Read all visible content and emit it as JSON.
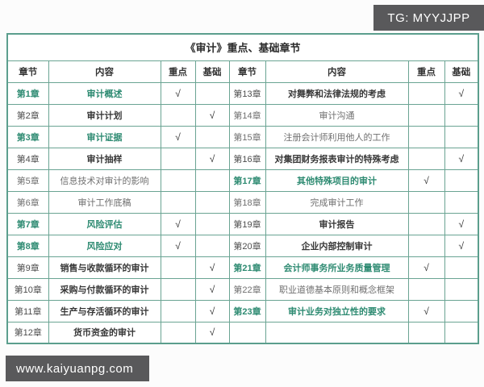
{
  "badges": {
    "tg": "TG: MYYJJPP",
    "site": "www.kaiyuanpg.com"
  },
  "colors": {
    "highlight_green": "#2e8b72",
    "table_border": "#5b9e8d",
    "badge_background": "#59595b"
  },
  "table": {
    "title": "《审计》重点、基础章节",
    "columns": [
      "章节",
      "内容",
      "重点",
      "基础",
      "章节",
      "内容",
      "重点",
      "基础"
    ],
    "check_mark": "√",
    "rows": [
      {
        "left": {
          "chapter": "第1章",
          "content": "审计概述",
          "key": "√",
          "basic": "",
          "style": "key"
        },
        "right": {
          "chapter": "第13章",
          "content": "对舞弊和法律法规的考虑",
          "key": "",
          "basic": "√",
          "style": "basic"
        }
      },
      {
        "left": {
          "chapter": "第2章",
          "content": "审计计划",
          "key": "",
          "basic": "√",
          "style": "basic"
        },
        "right": {
          "chapter": "第14章",
          "content": "审计沟通",
          "key": "",
          "basic": "",
          "style": "none"
        }
      },
      {
        "left": {
          "chapter": "第3章",
          "content": "审计证据",
          "key": "√",
          "basic": "",
          "style": "key"
        },
        "right": {
          "chapter": "第15章",
          "content": "注册会计师利用他人的工作",
          "key": "",
          "basic": "",
          "style": "none"
        }
      },
      {
        "left": {
          "chapter": "第4章",
          "content": "审计抽样",
          "key": "",
          "basic": "√",
          "style": "basic"
        },
        "right": {
          "chapter": "第16章",
          "content": "对集团财务报表审计的特殊考虑",
          "key": "",
          "basic": "√",
          "style": "basic"
        }
      },
      {
        "left": {
          "chapter": "第5章",
          "content": "信息技术对审计的影响",
          "key": "",
          "basic": "",
          "style": "none"
        },
        "right": {
          "chapter": "第17章",
          "content": "其他特殊项目的审计",
          "key": "√",
          "basic": "",
          "style": "key"
        }
      },
      {
        "left": {
          "chapter": "第6章",
          "content": "审计工作底稿",
          "key": "",
          "basic": "",
          "style": "none"
        },
        "right": {
          "chapter": "第18章",
          "content": "完成审计工作",
          "key": "",
          "basic": "",
          "style": "none"
        }
      },
      {
        "left": {
          "chapter": "第7章",
          "content": "风险评估",
          "key": "√",
          "basic": "",
          "style": "key"
        },
        "right": {
          "chapter": "第19章",
          "content": "审计报告",
          "key": "",
          "basic": "√",
          "style": "basic"
        }
      },
      {
        "left": {
          "chapter": "第8章",
          "content": "风险应对",
          "key": "√",
          "basic": "",
          "style": "key"
        },
        "right": {
          "chapter": "第20章",
          "content": "企业内部控制审计",
          "key": "",
          "basic": "√",
          "style": "basic"
        }
      },
      {
        "left": {
          "chapter": "第9章",
          "content": "销售与收款循环的审计",
          "key": "",
          "basic": "√",
          "style": "basic"
        },
        "right": {
          "chapter": "第21章",
          "content": "会计师事务所业务质量管理",
          "key": "√",
          "basic": "",
          "style": "key"
        }
      },
      {
        "left": {
          "chapter": "第10章",
          "content": "采购与付款循环的审计",
          "key": "",
          "basic": "√",
          "style": "basic"
        },
        "right": {
          "chapter": "第22章",
          "content": "职业道德基本原则和概念框架",
          "key": "",
          "basic": "",
          "style": "none"
        }
      },
      {
        "left": {
          "chapter": "第11章",
          "content": "生产与存活循环的审计",
          "key": "",
          "basic": "√",
          "style": "basic"
        },
        "right": {
          "chapter": "第23章",
          "content": "审计业务对独立性的要求",
          "key": "√",
          "basic": "",
          "style": "key"
        }
      },
      {
        "left": {
          "chapter": "第12章",
          "content": "货币资金的审计",
          "key": "",
          "basic": "√",
          "style": "basic"
        },
        "right": {
          "chapter": "",
          "content": "",
          "key": "",
          "basic": "",
          "style": "empty"
        }
      }
    ]
  }
}
